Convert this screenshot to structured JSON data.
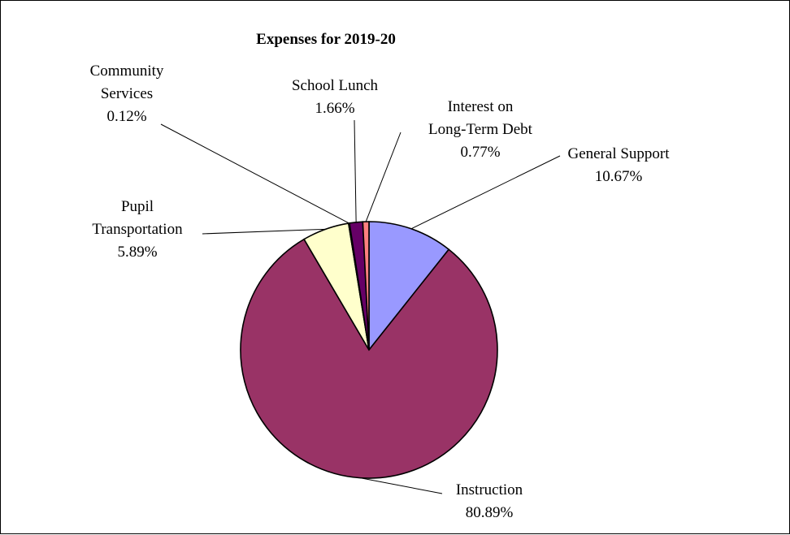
{
  "chart_data": {
    "type": "pie",
    "title": "Expenses for 2019-20",
    "slices": [
      {
        "name": "General Support",
        "label_lines": [
          "General Support"
        ],
        "value_label": "10.67%",
        "value": 10.67,
        "color": "#9999ff"
      },
      {
        "name": "Instruction",
        "label_lines": [
          "Instruction"
        ],
        "value_label": "80.89%",
        "value": 80.89,
        "color": "#993366"
      },
      {
        "name": "Pupil Transportation",
        "label_lines": [
          "Pupil",
          "Transportation"
        ],
        "value_label": "5.89%",
        "value": 5.89,
        "color": "#ffffcc"
      },
      {
        "name": "Community Services",
        "label_lines": [
          "Community",
          "Services"
        ],
        "value_label": "0.12%",
        "value": 0.12,
        "color": "#ccffff"
      },
      {
        "name": "School Lunch",
        "label_lines": [
          "School Lunch"
        ],
        "value_label": "1.66%",
        "value": 1.66,
        "color": "#660066"
      },
      {
        "name": "Interest on Long-Term Debt",
        "label_lines": [
          "Interest on",
          "Long-Term Debt"
        ],
        "value_label": "0.77%",
        "value": 0.77,
        "color": "#ff8080"
      }
    ]
  }
}
